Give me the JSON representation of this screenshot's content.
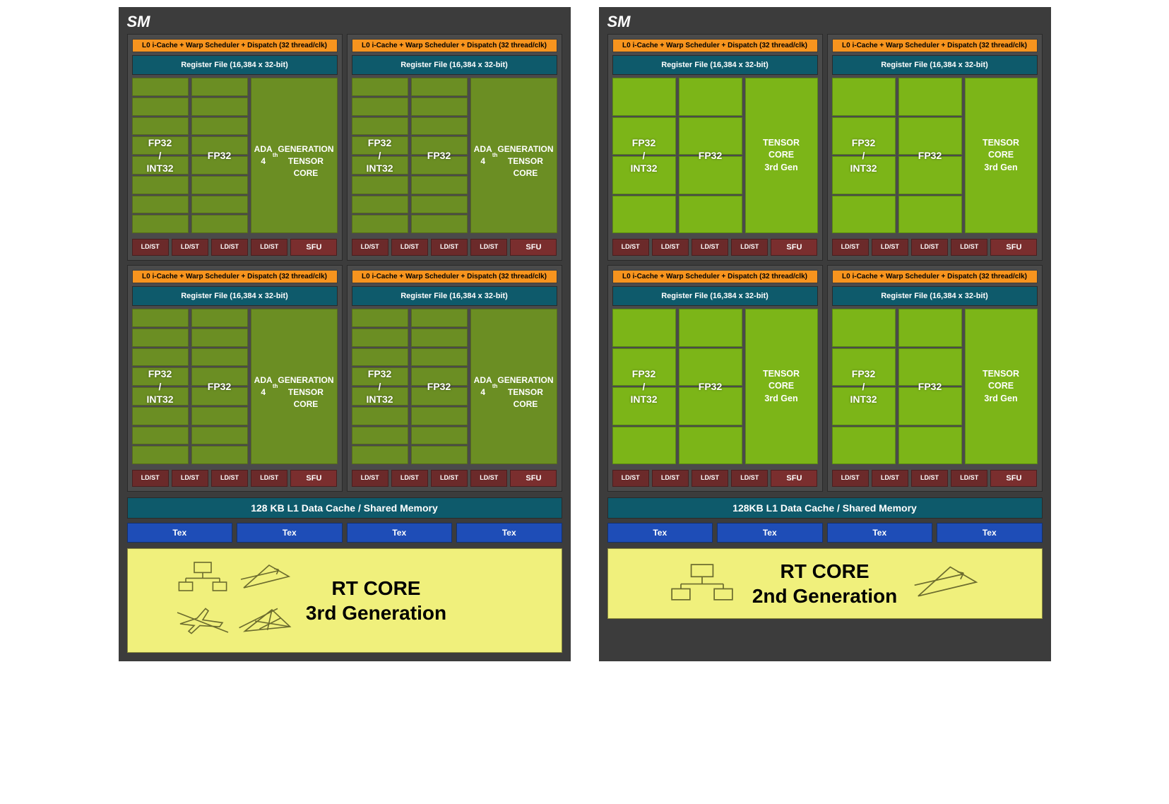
{
  "diagrams": {
    "left": {
      "title": "SM",
      "partition": {
        "l0": "L0 i-Cache + Warp Scheduler + Dispatch (32 thread/clk)",
        "regfile": "Register File (16,384 x 32-bit)",
        "alu1": "FP32\n/\nINT32",
        "alu2": "FP32",
        "tensor": "ADA 4th GENERATION TENSOR CORE",
        "ldst": "LD/ST",
        "sfu": "SFU",
        "grid_rows": 8,
        "cell_style": "dark"
      },
      "l1": "128 KB L1 Data Cache / Shared Memory",
      "tex": "Tex",
      "rt": {
        "line1": "RT CORE",
        "line2": "3rd Generation",
        "icon_count": 4
      }
    },
    "right": {
      "title": "SM",
      "partition": {
        "l0": "L0 i-Cache + Warp Scheduler + Dispatch (32 thread/clk)",
        "regfile": "Register File (16,384 x 32-bit)",
        "alu1": "FP32\n/\nINT32",
        "alu2": "FP32",
        "tensor": "TENSOR CORE 3rd Gen",
        "ldst": "LD/ST",
        "sfu": "SFU",
        "grid_rows": 4,
        "cell_style": "light"
      },
      "l1": "128KB L1 Data Cache / Shared Memory",
      "tex": "Tex",
      "rt": {
        "line1": "RT CORE",
        "line2": "2nd Generation",
        "icon_count": 2
      }
    }
  },
  "colors": {
    "frame": "#3c3c3c",
    "partition_bg": "#4a4a4a",
    "l0_bar": "#f7941e",
    "header_bar": "#0e5a6b",
    "cell_dark": "#6b8e23",
    "cell_light": "#7cb518",
    "ldst": "#6b2a2a",
    "tex": "#1e4db7",
    "rt_bg": "#f0f07c",
    "rt_stroke": "#6b6b2e"
  },
  "typography": {
    "sm_title_pt": 22,
    "bar_pt": 11,
    "rt_title_pt": 28,
    "font_family": "Arial"
  }
}
